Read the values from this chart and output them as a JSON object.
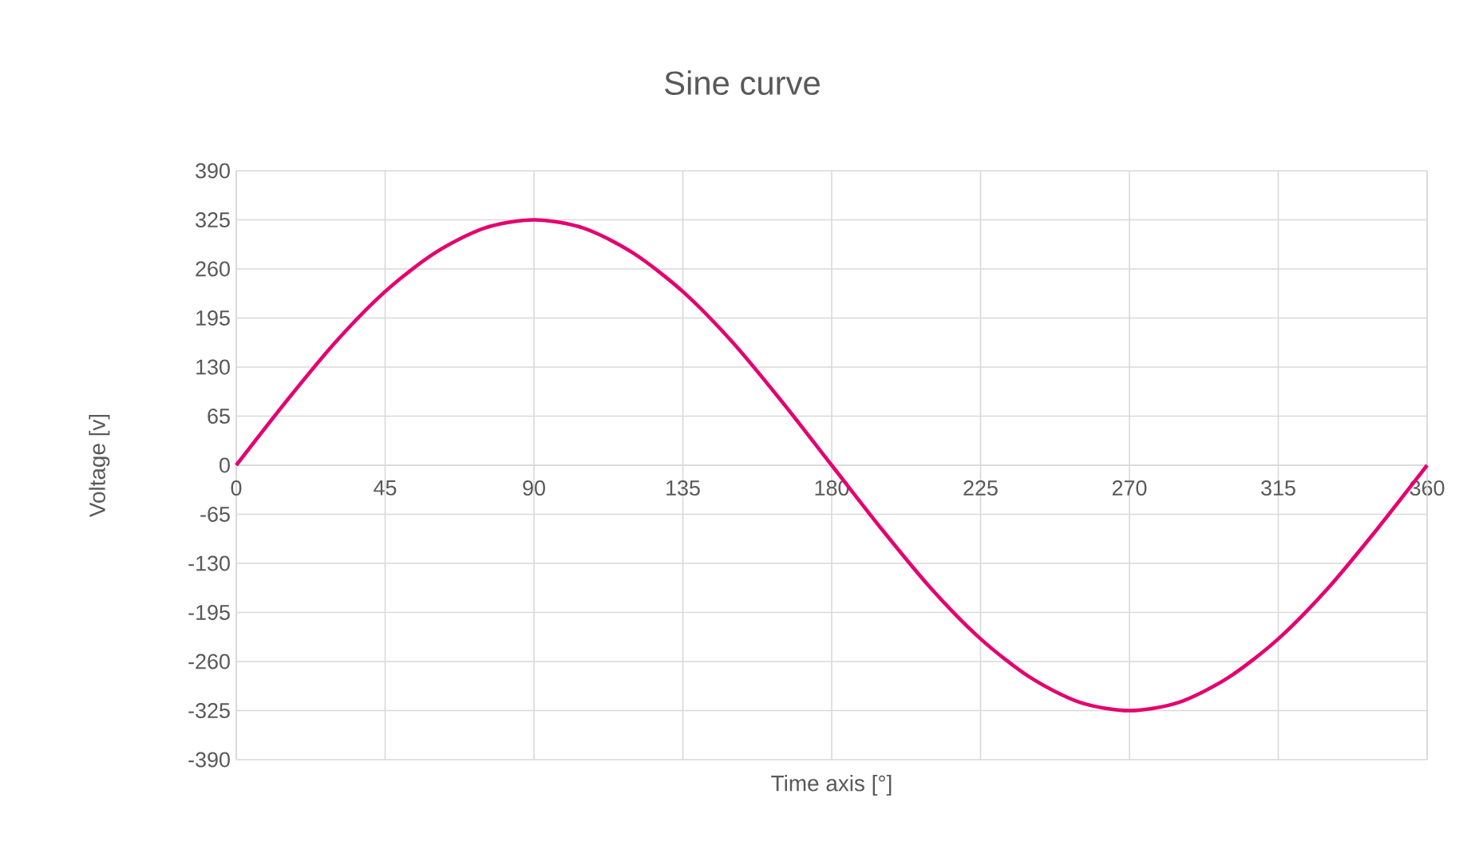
{
  "chart_data": {
    "type": "line",
    "title": "Sine curve",
    "xlabel": "Time axis [°]",
    "ylabel": "Voltage [v]",
    "x": [
      0,
      15,
      30,
      45,
      60,
      75,
      90,
      105,
      120,
      135,
      150,
      165,
      180,
      195,
      210,
      225,
      240,
      255,
      270,
      285,
      300,
      315,
      330,
      345,
      360
    ],
    "series": [
      {
        "color": "#e4006f",
        "values": [
          0,
          84,
          163,
          230,
          281,
          314,
          325,
          314,
          281,
          230,
          163,
          84,
          0,
          -84,
          -163,
          -230,
          -281,
          -314,
          -325,
          -314,
          -281,
          -230,
          -163,
          -84,
          0
        ]
      }
    ],
    "xlim": [
      0,
      360
    ],
    "ylim": [
      -390,
      390
    ],
    "xticks": [
      0,
      45,
      90,
      135,
      180,
      225,
      270,
      315,
      360
    ],
    "yticks": [
      -390,
      -325,
      -260,
      -195,
      -130,
      -65,
      0,
      65,
      130,
      195,
      260,
      325,
      390
    ],
    "grid": true,
    "marker": "none"
  }
}
